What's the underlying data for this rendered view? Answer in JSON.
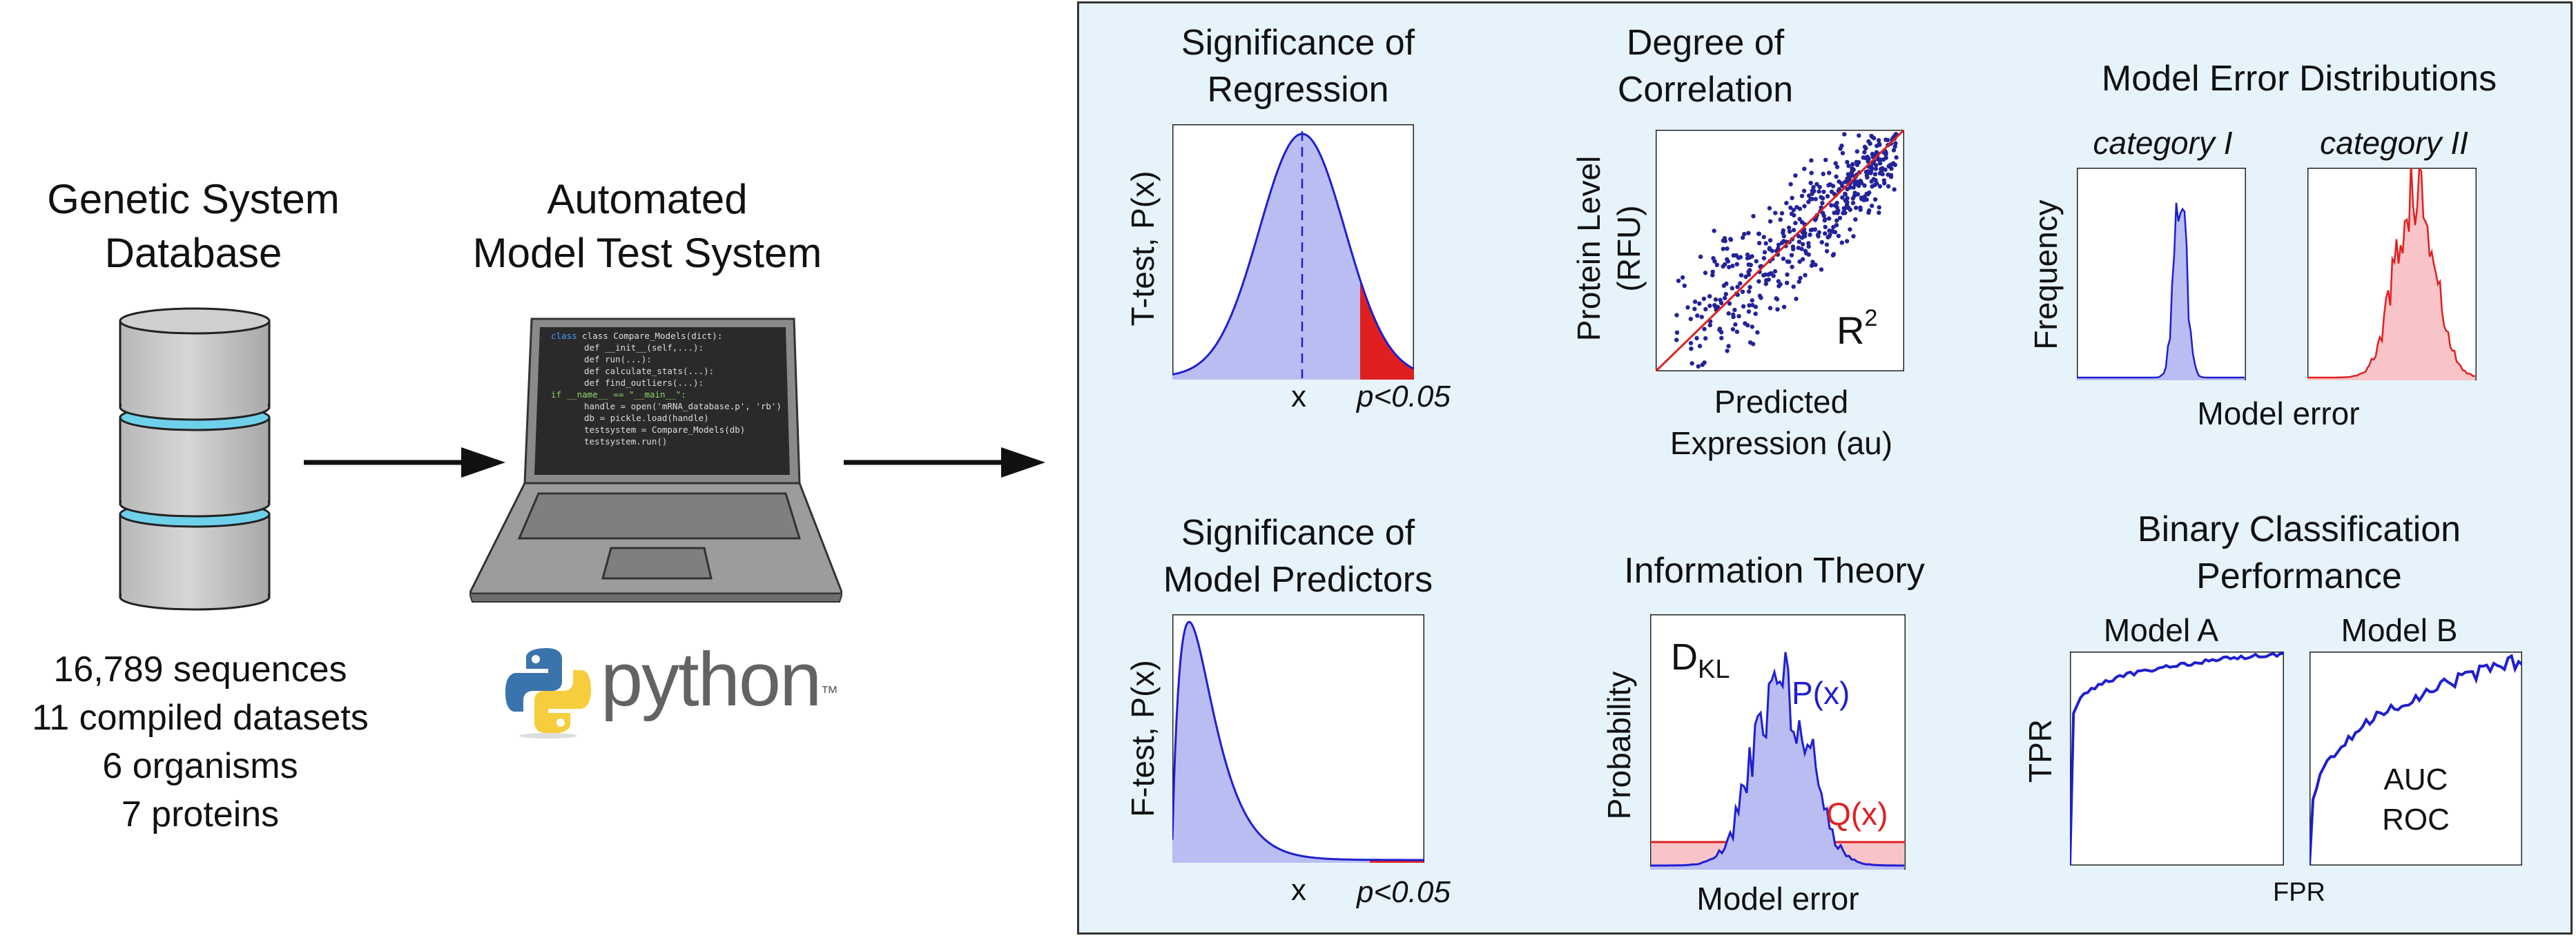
{
  "database": {
    "title_line1": "Genetic System",
    "title_line2": "Database",
    "stats": [
      "16,789 sequences",
      "11 compiled datasets",
      "6 organisms",
      "7 proteins"
    ]
  },
  "test_system": {
    "title_line1": "Automated",
    "title_line2": "Model Test System",
    "code_lines": [
      "class Compare_Models(dict):",
      "def __init__(self,...):",
      "def run(...):",
      "def calculate_stats(...):",
      "def find_outliers(...):",
      "if __name__ == \"__main__\":",
      "handle = open('mRNA_database.p', 'rb')",
      "db = pickle.load(handle)",
      "testsystem = Compare_Models(db)",
      "testsystem.run()"
    ],
    "python_logo_text": "python",
    "python_tm": "™"
  },
  "panels": {
    "regression": {
      "title_line1": "Significance of",
      "title_line2": "Regression",
      "ylabel": "T-test, P(x)",
      "xlabel": "x",
      "note": "p<0.05"
    },
    "predictors": {
      "title_line1": "Significance of",
      "title_line2": "Model Predictors",
      "ylabel": "F-test, P(x)",
      "xlabel": "x",
      "note": "p<0.05"
    },
    "correlation": {
      "title_line1": "Degree of",
      "title_line2": "Correlation",
      "ylabel_line1": "Protein Level",
      "ylabel_line2": "(RFU)",
      "xlabel_line1": "Predicted",
      "xlabel_line2": "Expression (au)",
      "stat_base": "R",
      "stat_sup": "2"
    },
    "information": {
      "title": "Information Theory",
      "ylabel": "Probability",
      "xlabel": "Model error",
      "dkl_base": "D",
      "dkl_sub": "KL",
      "p_label": "P(x)",
      "q_label": "Q(x)"
    },
    "error_dist": {
      "title": "Model Error Distributions",
      "cat1": "category I",
      "cat2": "category II",
      "ylabel": "Frequency",
      "xlabel": "Model error"
    },
    "classification": {
      "title_line1": "Binary Classification",
      "title_line2": "Performance",
      "model_a": "Model A",
      "model_b": "Model B",
      "ylabel": "TPR",
      "xlabel": "FPR",
      "auc": "AUC",
      "roc": "ROC"
    }
  },
  "colors": {
    "panel_bg": "#e6f3fb",
    "blue": "#1f1fd0",
    "blue_fill": "#b9bdf2",
    "red": "#e02020",
    "red_fill": "#f8c4c8"
  }
}
